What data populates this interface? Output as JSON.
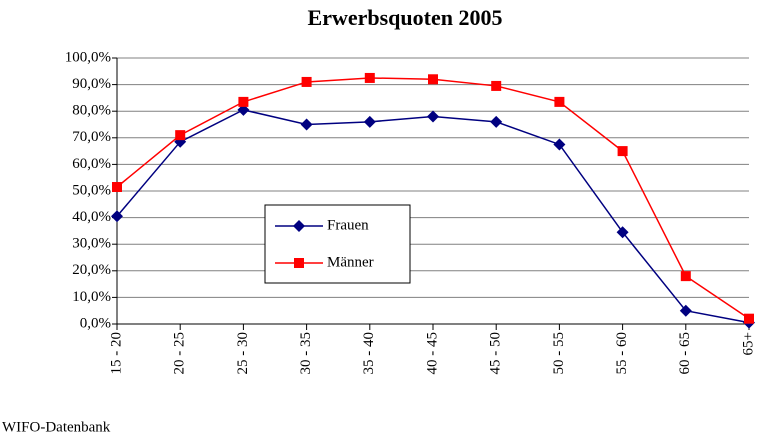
{
  "chart_data": {
    "type": "line",
    "title": "Erwerbsquoten 2005",
    "categories": [
      "15 - 20",
      "20 - 25",
      "25 - 30",
      "30 - 35",
      "35 - 40",
      "40 - 45",
      "45 - 50",
      "50 - 55",
      "55 - 60",
      "60 - 65",
      "65+"
    ],
    "series": [
      {
        "name": "Frauen",
        "color": "#000080",
        "marker": "diamond",
        "values": [
          40.5,
          68.5,
          80.5,
          75,
          76,
          78,
          76,
          67.5,
          34.5,
          5,
          0.5
        ]
      },
      {
        "name": "Männer",
        "color": "#ff0000",
        "marker": "square",
        "values": [
          51.5,
          71,
          83.5,
          91,
          92.5,
          92,
          89.5,
          83.5,
          65,
          18,
          2
        ]
      }
    ],
    "ylim": [
      0,
      100
    ],
    "yticks": [
      {
        "value": 0,
        "label": "0,0%"
      },
      {
        "value": 10,
        "label": "10,0%"
      },
      {
        "value": 20,
        "label": "20,0%"
      },
      {
        "value": 30,
        "label": "30,0%"
      },
      {
        "value": 40,
        "label": "40,0%"
      },
      {
        "value": 50,
        "label": "50,0%"
      },
      {
        "value": 60,
        "label": "60,0%"
      },
      {
        "value": 70,
        "label": "70,0%"
      },
      {
        "value": 80,
        "label": "80,0%"
      },
      {
        "value": 90,
        "label": "90,0%"
      },
      {
        "value": 100,
        "label": "100,0%"
      }
    ],
    "grid": true,
    "source": "WIFO-Datenbank"
  }
}
